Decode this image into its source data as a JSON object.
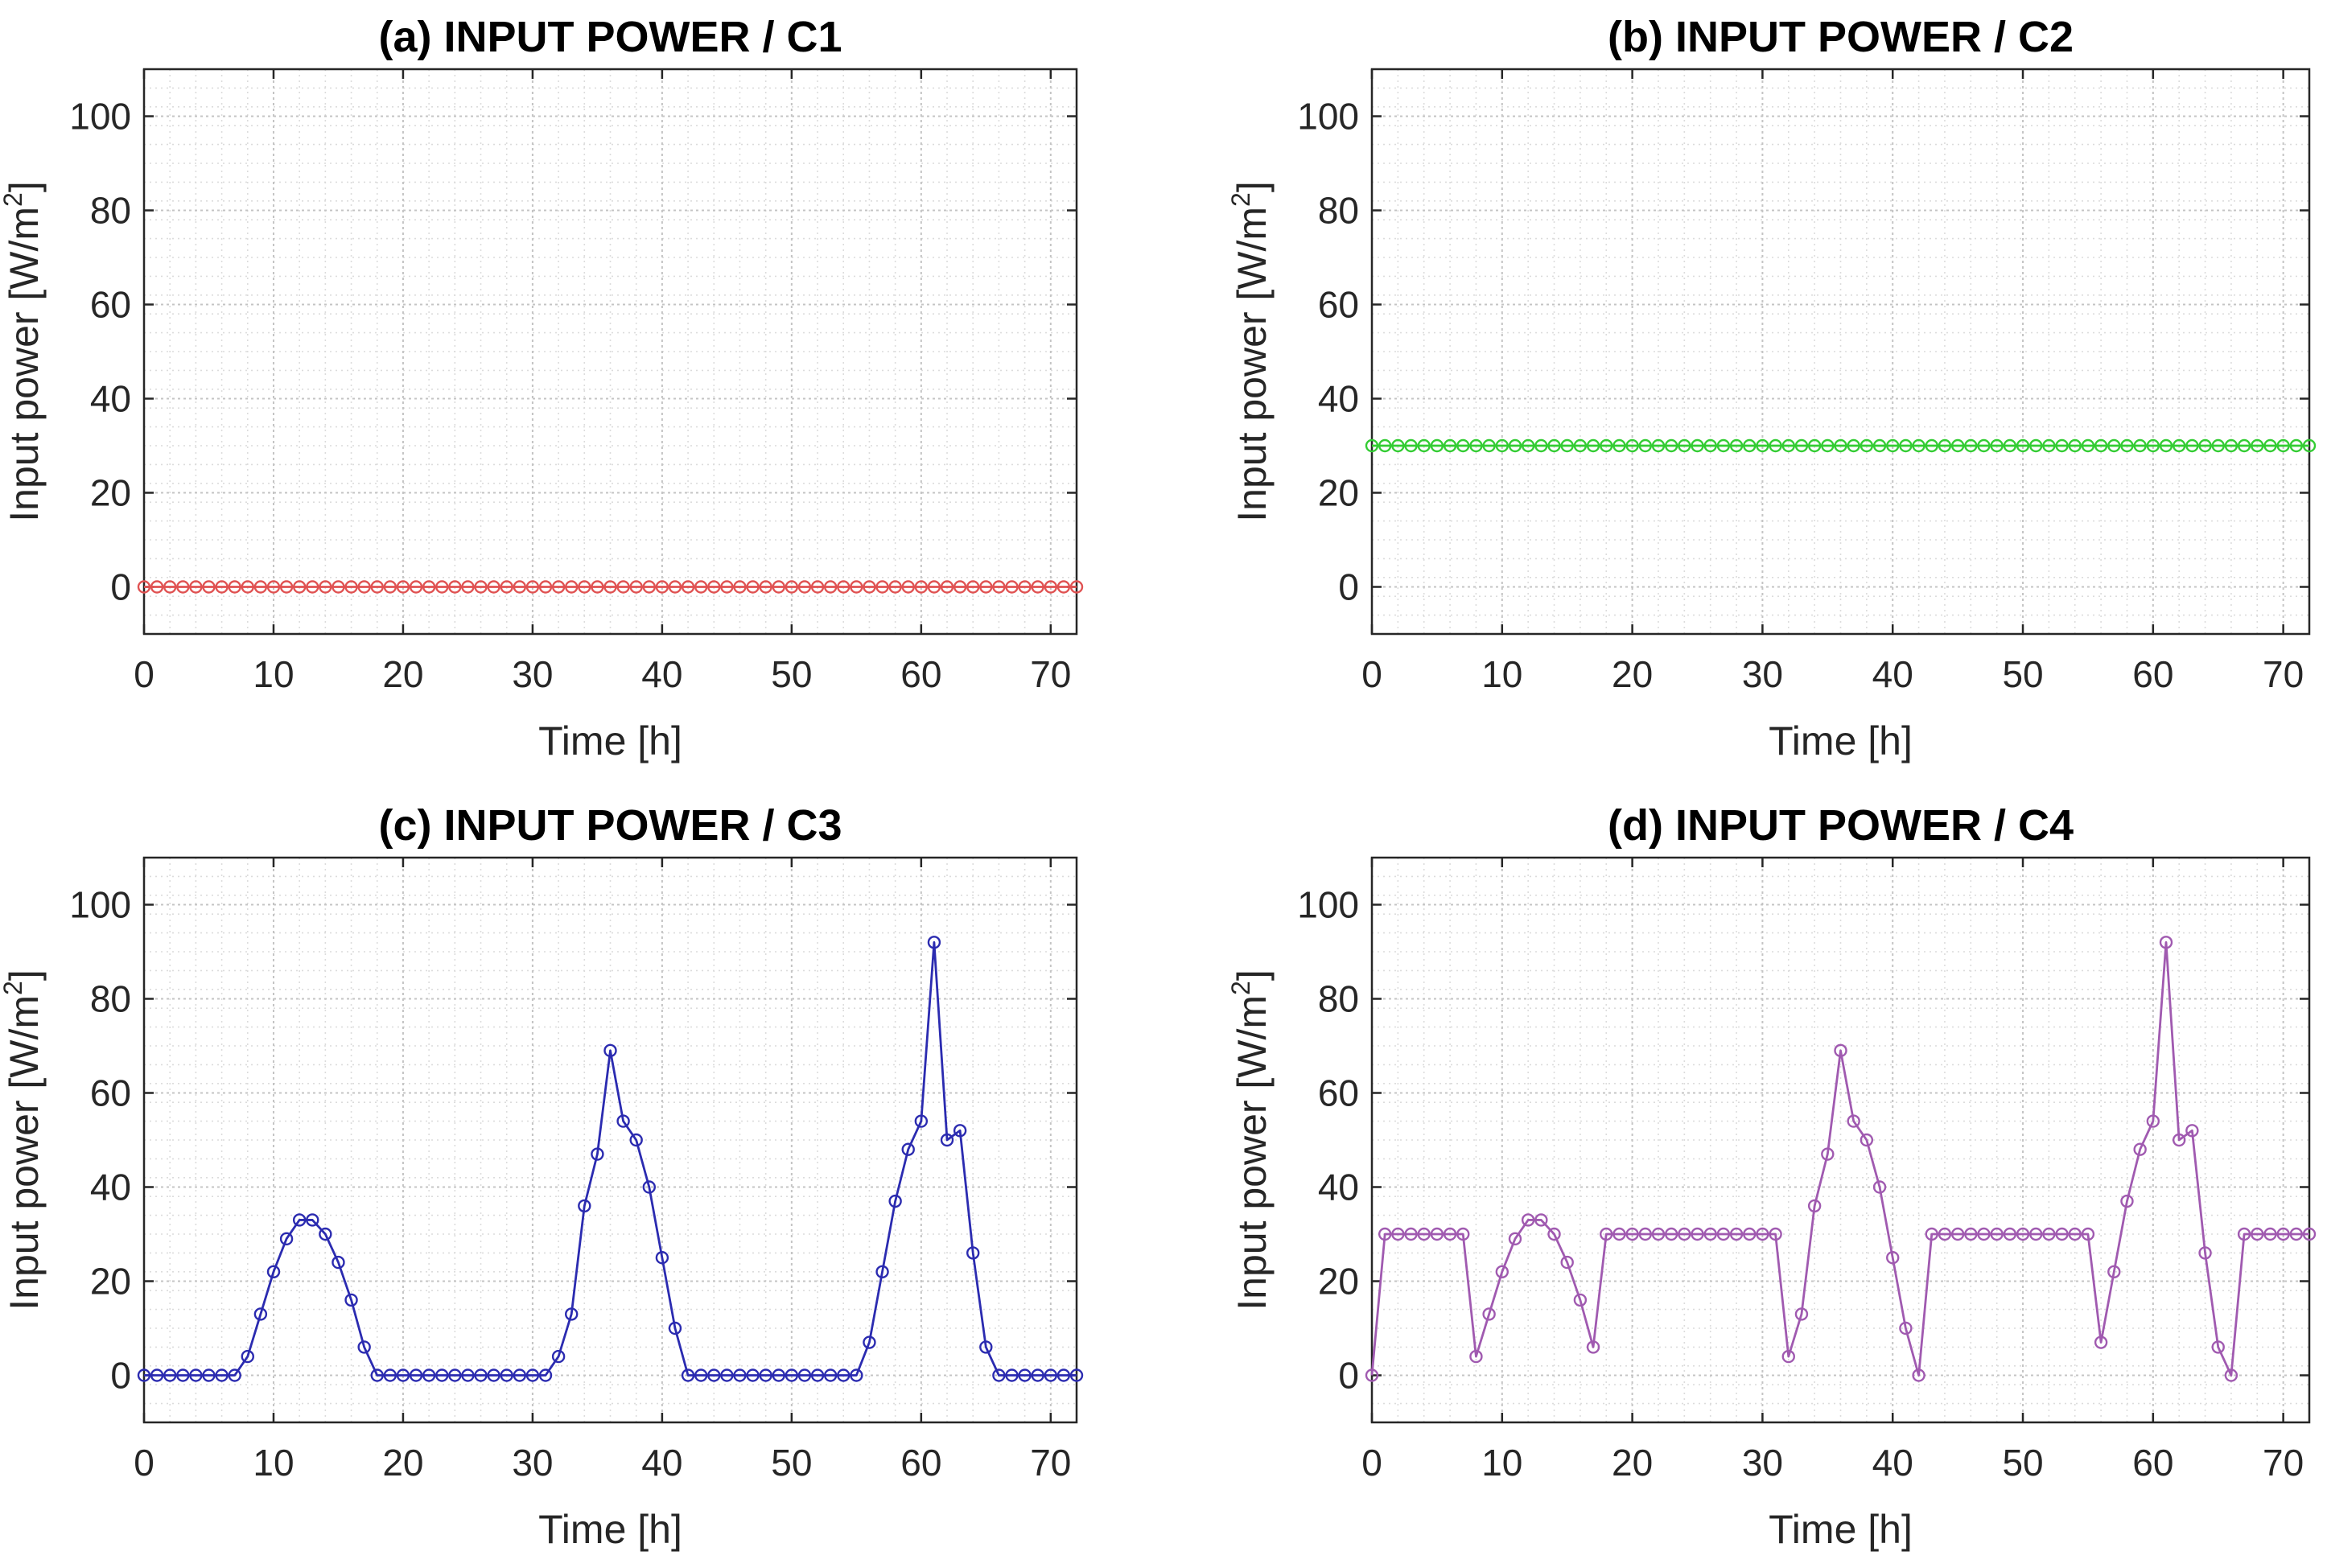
{
  "chart_data": [
    {
      "id": "a",
      "type": "line",
      "title": "(a) INPUT POWER / C1",
      "xlabel": "Time [h]",
      "ylabel": "Input power [W/m²]",
      "ylabel_parts": {
        "main": "Input power [W/m",
        "sup": "2",
        "end": "]"
      },
      "xlim": [
        0,
        72
      ],
      "ylim": [
        -10,
        110
      ],
      "xticks": [
        0,
        10,
        20,
        30,
        40,
        50,
        60,
        70
      ],
      "yticks": [
        0,
        20,
        40,
        60,
        80,
        100
      ],
      "xtick_labels": [
        "0",
        "10",
        "20",
        "30",
        "40",
        "50",
        "60",
        "70"
      ],
      "ytick_labels": [
        "0",
        "20",
        "40",
        "60",
        "80",
        "100"
      ],
      "grid": true,
      "color": "#e05252",
      "marker": "circle",
      "series": [
        {
          "x_start": 0,
          "x_step": 1,
          "values": [
            0,
            0,
            0,
            0,
            0,
            0,
            0,
            0,
            0,
            0,
            0,
            0,
            0,
            0,
            0,
            0,
            0,
            0,
            0,
            0,
            0,
            0,
            0,
            0,
            0,
            0,
            0,
            0,
            0,
            0,
            0,
            0,
            0,
            0,
            0,
            0,
            0,
            0,
            0,
            0,
            0,
            0,
            0,
            0,
            0,
            0,
            0,
            0,
            0,
            0,
            0,
            0,
            0,
            0,
            0,
            0,
            0,
            0,
            0,
            0,
            0,
            0,
            0,
            0,
            0,
            0,
            0,
            0,
            0,
            0,
            0,
            0,
            0
          ]
        }
      ]
    },
    {
      "id": "b",
      "type": "line",
      "title": "(b) INPUT POWER / C2",
      "xlabel": "Time [h]",
      "ylabel": "Input power [W/m²]",
      "ylabel_parts": {
        "main": "Input power [W/m",
        "sup": "2",
        "end": "]"
      },
      "xlim": [
        0,
        72
      ],
      "ylim": [
        -10,
        110
      ],
      "xticks": [
        0,
        10,
        20,
        30,
        40,
        50,
        60,
        70
      ],
      "yticks": [
        0,
        20,
        40,
        60,
        80,
        100
      ],
      "xtick_labels": [
        "0",
        "10",
        "20",
        "30",
        "40",
        "50",
        "60",
        "70"
      ],
      "ytick_labels": [
        "0",
        "20",
        "40",
        "60",
        "80",
        "100"
      ],
      "grid": true,
      "color": "#33cc33",
      "marker": "circle",
      "series": [
        {
          "x_start": 0,
          "x_step": 1,
          "values": [
            30,
            30,
            30,
            30,
            30,
            30,
            30,
            30,
            30,
            30,
            30,
            30,
            30,
            30,
            30,
            30,
            30,
            30,
            30,
            30,
            30,
            30,
            30,
            30,
            30,
            30,
            30,
            30,
            30,
            30,
            30,
            30,
            30,
            30,
            30,
            30,
            30,
            30,
            30,
            30,
            30,
            30,
            30,
            30,
            30,
            30,
            30,
            30,
            30,
            30,
            30,
            30,
            30,
            30,
            30,
            30,
            30,
            30,
            30,
            30,
            30,
            30,
            30,
            30,
            30,
            30,
            30,
            30,
            30,
            30,
            30,
            30,
            30
          ]
        }
      ]
    },
    {
      "id": "c",
      "type": "line",
      "title": "(c) INPUT POWER / C3",
      "xlabel": "Time [h]",
      "ylabel": "Input power [W/m²]",
      "ylabel_parts": {
        "main": "Input power [W/m",
        "sup": "2",
        "end": "]"
      },
      "xlim": [
        0,
        72
      ],
      "ylim": [
        -10,
        110
      ],
      "xticks": [
        0,
        10,
        20,
        30,
        40,
        50,
        60,
        70
      ],
      "yticks": [
        0,
        20,
        40,
        60,
        80,
        100
      ],
      "xtick_labels": [
        "0",
        "10",
        "20",
        "30",
        "40",
        "50",
        "60",
        "70"
      ],
      "ytick_labels": [
        "0",
        "20",
        "40",
        "60",
        "80",
        "100"
      ],
      "grid": true,
      "color": "#2b2bb0",
      "marker": "circle",
      "series": [
        {
          "x_start": 0,
          "x_step": 1,
          "values": [
            0,
            0,
            0,
            0,
            0,
            0,
            0,
            0,
            4,
            13,
            22,
            29,
            33,
            33,
            30,
            24,
            16,
            6,
            0,
            0,
            0,
            0,
            0,
            0,
            0,
            0,
            0,
            0,
            0,
            0,
            0,
            0,
            4,
            13,
            36,
            47,
            69,
            54,
            50,
            40,
            25,
            10,
            0,
            0,
            0,
            0,
            0,
            0,
            0,
            0,
            0,
            0,
            0,
            0,
            0,
            0,
            7,
            22,
            37,
            48,
            54,
            92,
            50,
            52,
            26,
            6,
            0,
            0,
            0,
            0,
            0,
            0,
            0
          ]
        }
      ]
    },
    {
      "id": "d",
      "type": "line",
      "title": "(d) INPUT POWER / C4",
      "xlabel": "Time [h]",
      "ylabel": "Input power [W/m²]",
      "ylabel_parts": {
        "main": "Input power [W/m",
        "sup": "2",
        "end": "]"
      },
      "xlim": [
        0,
        72
      ],
      "ylim": [
        -10,
        110
      ],
      "xticks": [
        0,
        10,
        20,
        30,
        40,
        50,
        60,
        70
      ],
      "yticks": [
        0,
        20,
        40,
        60,
        80,
        100
      ],
      "xtick_labels": [
        "0",
        "10",
        "20",
        "30",
        "40",
        "50",
        "60",
        "70"
      ],
      "ytick_labels": [
        "0",
        "20",
        "40",
        "60",
        "80",
        "100"
      ],
      "grid": true,
      "color": "#a05ab0",
      "marker": "circle",
      "series": [
        {
          "x_start": 0,
          "x_step": 1,
          "values": [
            0,
            30,
            30,
            30,
            30,
            30,
            30,
            30,
            4,
            13,
            22,
            29,
            33,
            33,
            30,
            24,
            16,
            6,
            30,
            30,
            30,
            30,
            30,
            30,
            30,
            30,
            30,
            30,
            30,
            30,
            30,
            30,
            4,
            13,
            36,
            47,
            69,
            54,
            50,
            40,
            25,
            10,
            0,
            30,
            30,
            30,
            30,
            30,
            30,
            30,
            30,
            30,
            30,
            30,
            30,
            30,
            7,
            22,
            37,
            48,
            54,
            92,
            50,
            52,
            26,
            6,
            0,
            30,
            30,
            30,
            30,
            30,
            30
          ]
        }
      ]
    }
  ]
}
